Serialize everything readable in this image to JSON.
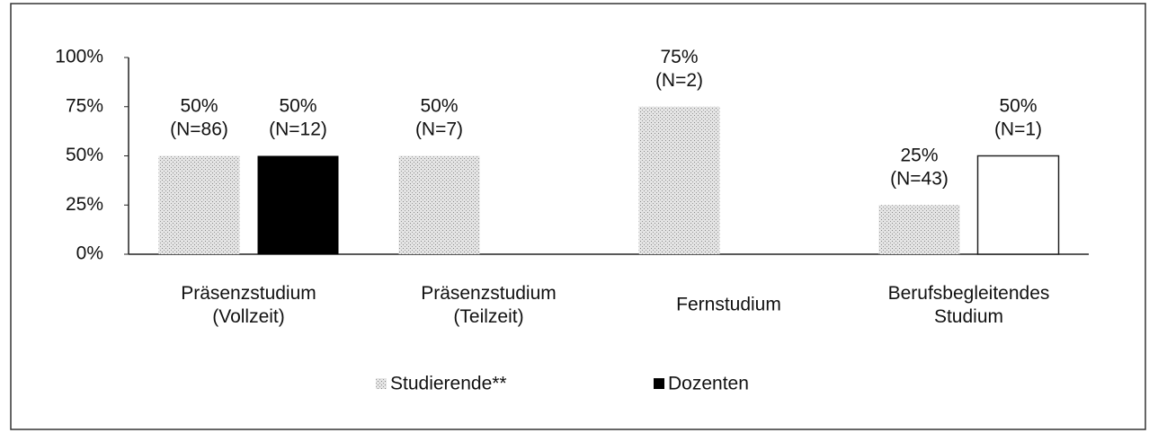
{
  "chart_data": {
    "type": "bar",
    "categories": [
      "Präsenzstudium\n(Vollzeit)",
      "Präsenzstudium\n(Teilzeit)",
      "Fernstudium",
      "Berufsbegleitendes\nStudium"
    ],
    "series": [
      {
        "name": "Studierende**",
        "color": "#c8c8c8",
        "values": [
          50,
          50,
          75,
          25
        ],
        "value_labels": [
          "50%\n(N=86)",
          "50%\n(N=7)",
          "75%\n(N=2)",
          "25%\n(N=43)"
        ]
      },
      {
        "name": "Dozenten",
        "color": "#000000",
        "colors": [
          "#000000",
          null,
          null,
          "#ffffff"
        ],
        "values": [
          50,
          null,
          null,
          50
        ],
        "value_labels": [
          "50%\n(N=12)",
          null,
          null,
          "50%\n(N=1)"
        ]
      }
    ],
    "ylim": [
      0,
      100
    ],
    "yticks": [
      {
        "value": 0,
        "label": "0%"
      },
      {
        "value": 25,
        "label": "25%"
      },
      {
        "value": 50,
        "label": "50%"
      },
      {
        "value": 75,
        "label": "75%"
      },
      {
        "value": 100,
        "label": "100%"
      }
    ],
    "grid": false,
    "legend": "bottom"
  }
}
